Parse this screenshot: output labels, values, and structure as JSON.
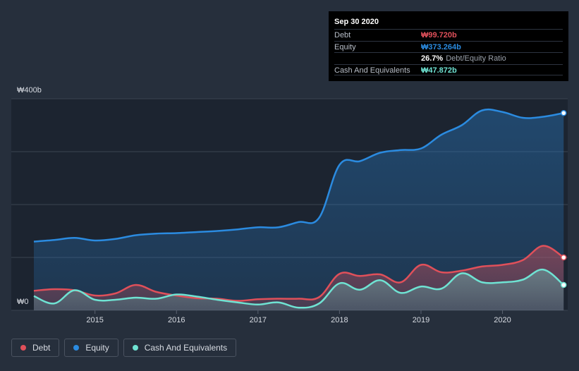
{
  "chart_data": {
    "type": "area",
    "y_ticks": [
      {
        "value": 400,
        "label": "₩400b"
      },
      {
        "value": 0,
        "label": "₩0"
      }
    ],
    "ylim": [
      0,
      400
    ],
    "xlim": [
      2014.2,
      2020.75
    ],
    "x_ticks": [
      {
        "value": 2015,
        "label": "2015"
      },
      {
        "value": 2016,
        "label": "2016"
      },
      {
        "value": 2017,
        "label": "2017"
      },
      {
        "value": 2018,
        "label": "2018"
      },
      {
        "value": 2019,
        "label": "2019"
      },
      {
        "value": 2020,
        "label": "2020"
      }
    ],
    "grid": true,
    "legend_position": "bottom-left",
    "series": [
      {
        "name": "Equity",
        "color": "#2b8be0",
        "x": [
          2014.25,
          2014.5,
          2014.75,
          2015.0,
          2015.25,
          2015.5,
          2015.75,
          2016.0,
          2016.25,
          2016.5,
          2016.75,
          2017.0,
          2017.25,
          2017.5,
          2017.75,
          2018.0,
          2018.25,
          2018.5,
          2018.75,
          2019.0,
          2019.25,
          2019.5,
          2019.75,
          2020.0,
          2020.25,
          2020.5,
          2020.75
        ],
        "values": [
          130,
          133,
          137,
          132,
          135,
          142,
          145,
          146,
          148,
          150,
          153,
          157,
          157,
          167,
          175,
          275,
          282,
          298,
          303,
          306,
          332,
          350,
          378,
          375,
          364,
          366,
          373
        ]
      },
      {
        "name": "Debt",
        "color": "#e0505a",
        "x": [
          2014.25,
          2014.5,
          2014.75,
          2015.0,
          2015.25,
          2015.5,
          2015.75,
          2016.0,
          2016.25,
          2016.5,
          2016.75,
          2017.0,
          2017.25,
          2017.5,
          2017.75,
          2018.0,
          2018.25,
          2018.5,
          2018.75,
          2019.0,
          2019.25,
          2019.5,
          2019.75,
          2020.0,
          2020.25,
          2020.5,
          2020.75
        ],
        "values": [
          37,
          40,
          38,
          28,
          32,
          48,
          35,
          28,
          23,
          22,
          18,
          21,
          22,
          22,
          25,
          69,
          65,
          68,
          53,
          86,
          72,
          75,
          83,
          86,
          95,
          122,
          100
        ]
      },
      {
        "name": "Cash And Equivalents",
        "color": "#6fe3d3",
        "x": [
          2014.25,
          2014.5,
          2014.75,
          2015.0,
          2015.25,
          2015.5,
          2015.75,
          2016.0,
          2016.25,
          2016.5,
          2016.75,
          2017.0,
          2017.25,
          2017.5,
          2017.75,
          2018.0,
          2018.25,
          2018.5,
          2018.75,
          2019.0,
          2019.25,
          2019.5,
          2019.75,
          2020.0,
          2020.25,
          2020.5,
          2020.75
        ],
        "values": [
          27,
          13,
          38,
          20,
          20,
          24,
          22,
          30,
          26,
          20,
          15,
          11,
          15,
          5,
          13,
          51,
          39,
          57,
          33,
          45,
          41,
          70,
          53,
          53,
          58,
          77,
          48
        ]
      }
    ]
  },
  "tooltip": {
    "date": "Sep 30 2020",
    "debt_label": "Debt",
    "debt_value": "₩99.720b",
    "equity_label": "Equity",
    "equity_value": "₩373.264b",
    "ratio_value": "26.7%",
    "ratio_label": "Debt/Equity Ratio",
    "cash_label": "Cash And Equivalents",
    "cash_value": "₩47.872b"
  },
  "legend": {
    "debt": "Debt",
    "equity": "Equity",
    "cash": "Cash And Equivalents"
  },
  "colors": {
    "debt": "#e0505a",
    "equity": "#2b8be0",
    "cash": "#6fe3d3",
    "background": "#262f3c",
    "plot_background": "#1c2430"
  }
}
